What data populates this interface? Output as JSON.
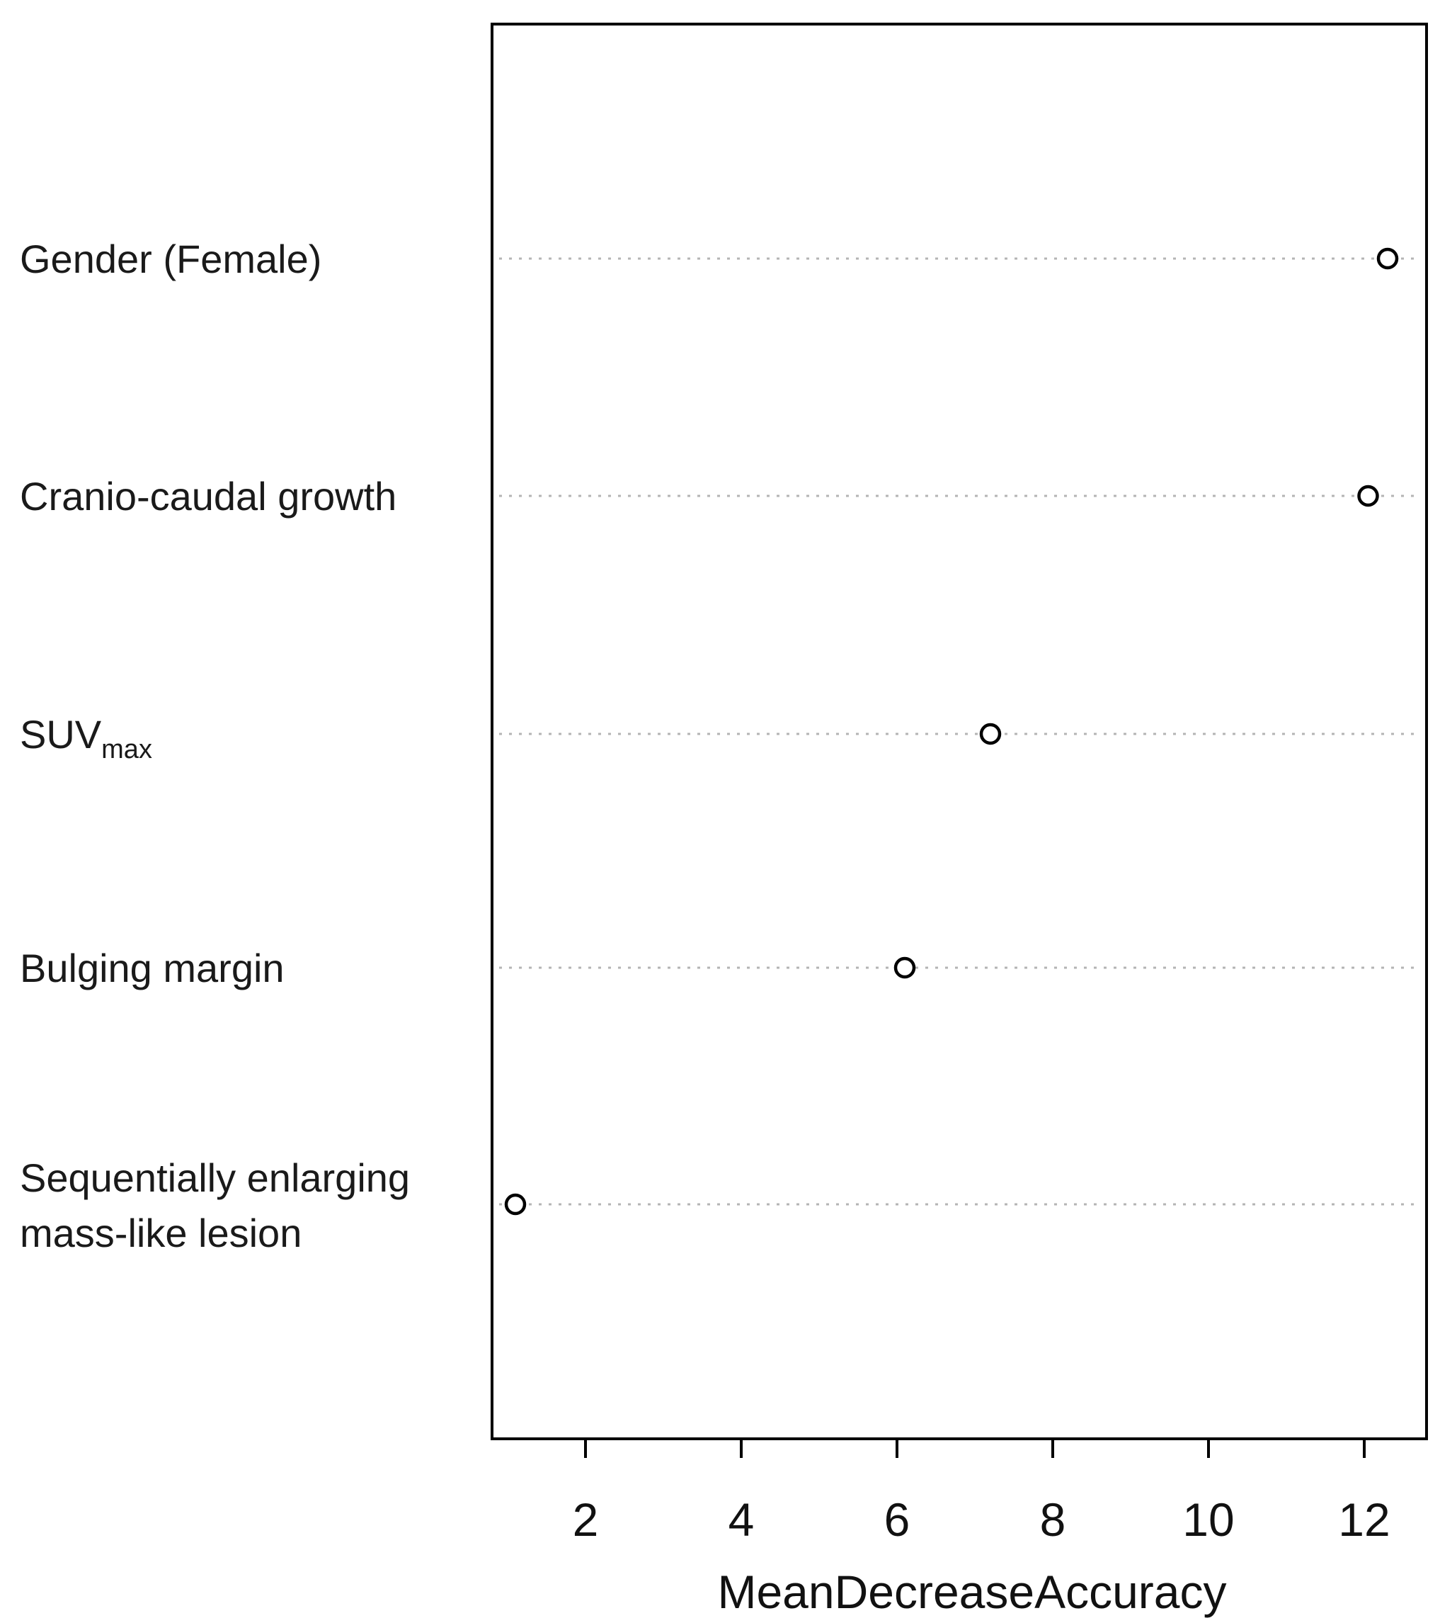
{
  "chart_data": {
    "type": "scatter",
    "title": "",
    "xlabel": "MeanDecreaseAccuracy",
    "ylabel": "",
    "xlim": [
      0.8,
      12.8
    ],
    "xticks": [
      2,
      4,
      6,
      8,
      10,
      12
    ],
    "grid": "dotted horizontal lines per category",
    "categories": [
      {
        "label": "Gender (Female)",
        "value": 12.3
      },
      {
        "label": "Cranio-caudal growth",
        "value": 12.05
      },
      {
        "label": "SUVmax",
        "label_main": "SUV",
        "label_sub": "max",
        "value": 7.2
      },
      {
        "label": "Bulging margin",
        "value": 6.1
      },
      {
        "label": "Sequentially enlarging mass-like lesion",
        "label_lines": [
          "Sequentially enlarging",
          "mass-like lesion"
        ],
        "value": 1.1
      }
    ]
  }
}
